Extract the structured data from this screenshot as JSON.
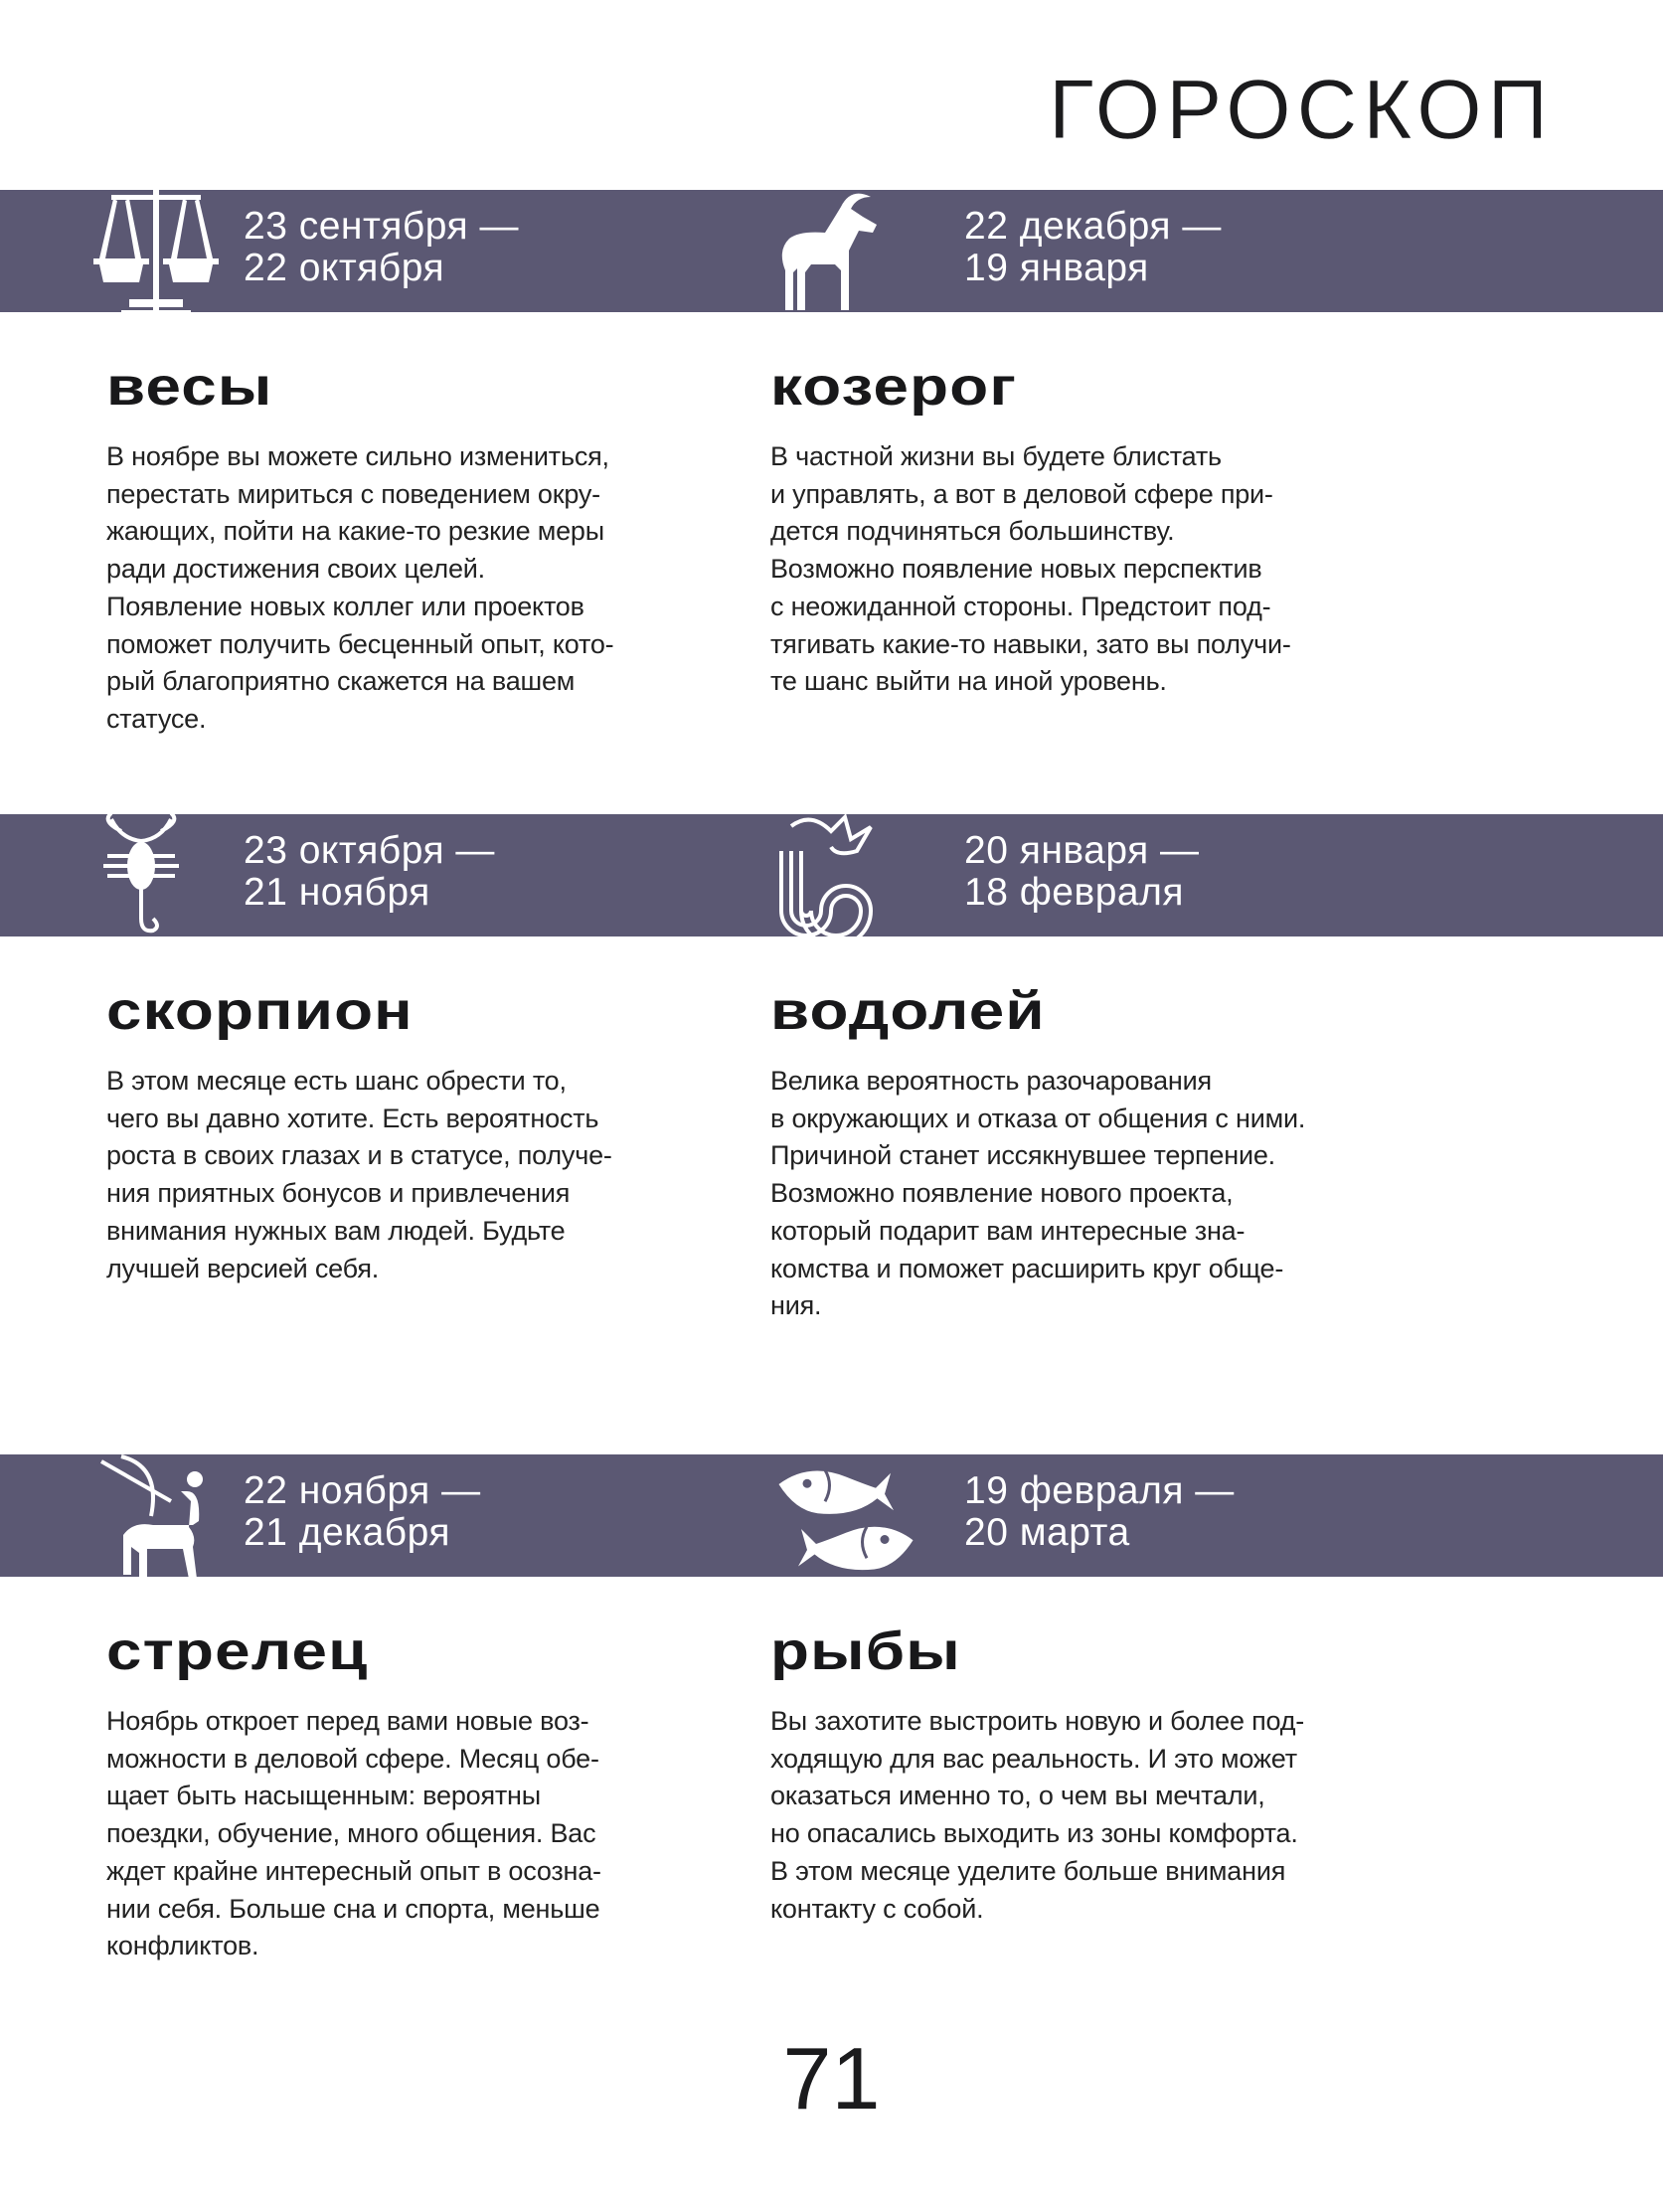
{
  "header": {
    "title": "ГОРОСКОП"
  },
  "colors": {
    "band": "#5b5873",
    "text": "#1d1d1f"
  },
  "signs": [
    {
      "icon": "libra-scales-icon",
      "dates": [
        "23 сентября —",
        "22 октября"
      ],
      "name": "весы",
      "lines": [
        "В ноябре вы можете сильно измениться,",
        "перестать мириться с поведением окру-",
        "жающих, пойти на какие-то резкие меры",
        "ради достижения своих целей.",
        "Появление новых коллег или проектов",
        "поможет получить бесценный опыт, кото-",
        "рый благоприятно скажется на вашем",
        "статусе."
      ]
    },
    {
      "icon": "capricorn-goat-icon",
      "dates": [
        "22 декабря —",
        "19 января"
      ],
      "name": "козерог",
      "lines": [
        "В частной жизни вы будете блистать",
        "и управлять, а вот в деловой сфере при-",
        "дется подчиняться большинству.",
        "Возможно появление новых перспектив",
        "с неожиданной стороны. Предстоит под-",
        "тягивать какие-то навыки, зато вы получи-",
        "те шанс выйти на иной уровень."
      ]
    },
    {
      "icon": "scorpio-scorpion-icon",
      "dates": [
        "23 октября —",
        "21 ноября"
      ],
      "name": "скорпион",
      "lines": [
        "В этом месяце есть шанс обрести то,",
        "чего вы давно хотите. Есть вероятность",
        "роста в своих глазах и в статусе, получе-",
        "ния приятных бонусов и привлечения",
        "внимания нужных вам людей. Будьте",
        "лучшей версией себя."
      ]
    },
    {
      "icon": "aquarius-water-icon",
      "dates": [
        "20 января —",
        "18 февраля"
      ],
      "name": "водолей",
      "lines": [
        "Велика вероятность разочарования",
        "в окружающих и отказа от общения с ними.",
        "Причиной станет иссякнувшее терпение.",
        "Возможно появление нового проекта,",
        "который подарит вам интересные зна-",
        "комства и поможет расширить круг обще-",
        "ния."
      ]
    },
    {
      "icon": "sagittarius-archer-icon",
      "dates": [
        "22 ноября —",
        "21 декабря"
      ],
      "name": "стрелец",
      "lines": [
        "Ноябрь откроет перед вами новые воз-",
        "можности в деловой сфере. Месяц обе-",
        "щает быть насыщенным: вероятны",
        "поездки, обучение, много общения. Вас",
        "ждет крайне интересный опыт в осозна-",
        "нии себя. Больше сна и спорта, меньше",
        "конфликтов."
      ]
    },
    {
      "icon": "pisces-fish-icon",
      "dates": [
        "19 февраля —",
        "20 марта"
      ],
      "name": "рыбы",
      "lines": [
        "Вы захотите выстроить новую и более под-",
        "ходящую для вас реальность. И это может",
        "оказаться именно то, о чем вы мечтали,",
        "но опасались выходить из зоны комфорта.",
        "В этом месяце уделите больше внимания",
        "контакту с собой."
      ]
    }
  ],
  "footer": {
    "page_number": "71"
  }
}
